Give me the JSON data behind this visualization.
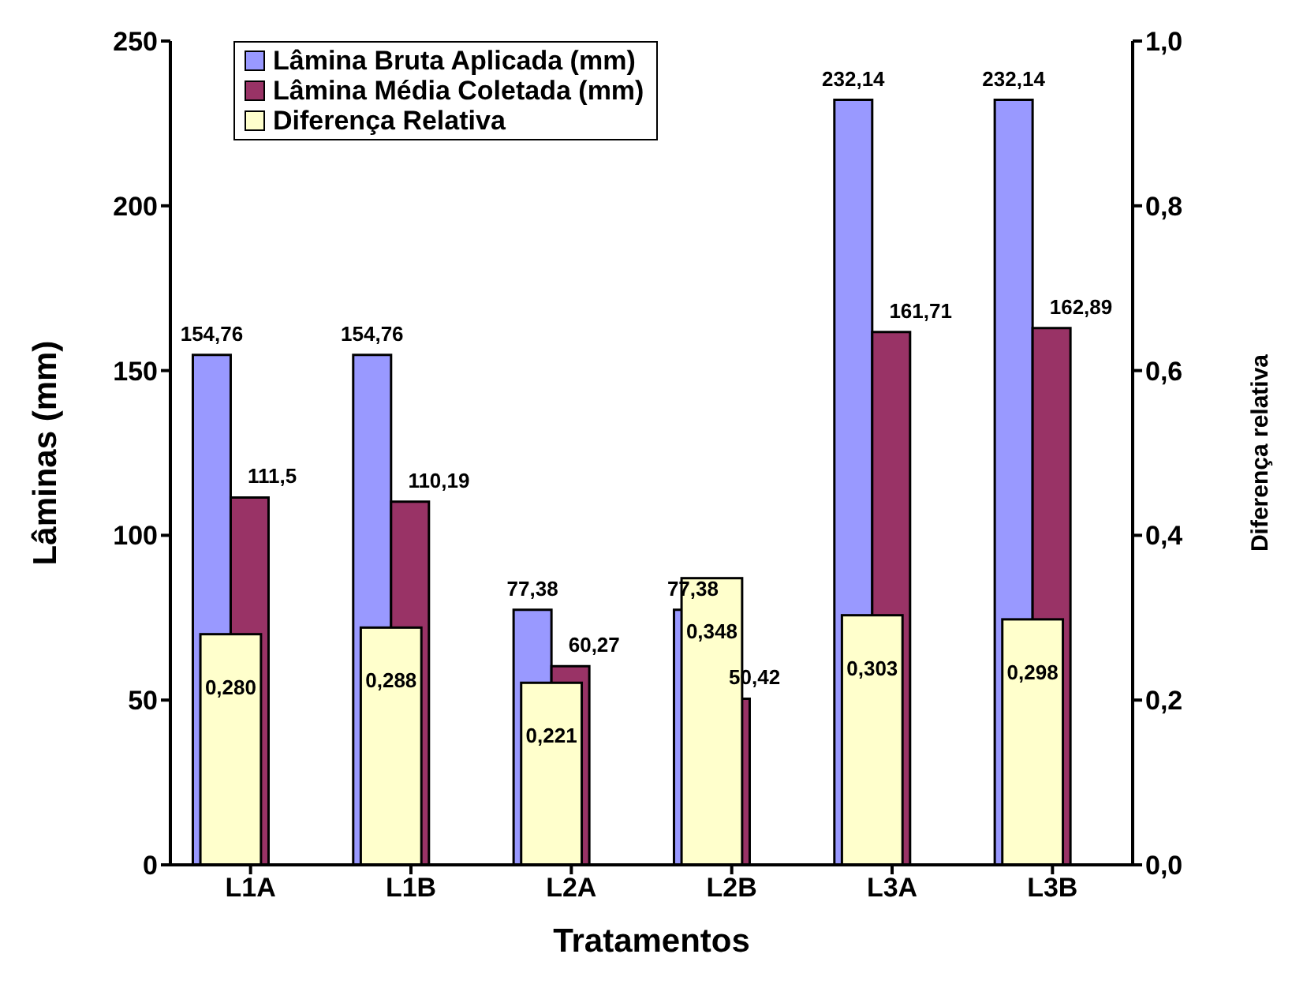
{
  "chart_data": {
    "type": "bar",
    "xlabel": "Tratamentos",
    "ylabel": "Lâminas (mm)",
    "y2label": "Diferença relativa",
    "categories": [
      "L1A",
      "L1B",
      "L2A",
      "L2B",
      "L3A",
      "L3B"
    ],
    "series": [
      {
        "name": "Lâmina Bruta Aplicada (mm)",
        "color": "#9999ff",
        "values": [
          154.76,
          154.76,
          77.38,
          77.38,
          232.14,
          232.14
        ],
        "value_labels": [
          "154,76",
          "154,76",
          "77,38",
          "77,38",
          "232,14",
          "232,14"
        ]
      },
      {
        "name": "Lâmina Média Coletada (mm)",
        "color": "#993366",
        "values": [
          111.5,
          110.19,
          60.27,
          50.42,
          161.71,
          162.89
        ],
        "value_labels": [
          "111,5",
          "110,19",
          "60,27",
          "50,42",
          "161,71",
          "162,89"
        ]
      },
      {
        "name": "Diferença Relativa",
        "color": "#ffffcc",
        "axis": "y2",
        "values": [
          0.28,
          0.288,
          0.221,
          0.348,
          0.303,
          0.298
        ],
        "value_labels": [
          "0,280",
          "0,288",
          "0,221",
          "0,348",
          "0,303",
          "0,298"
        ]
      }
    ],
    "ylim": [
      0,
      250
    ],
    "yticks": [
      0,
      50,
      100,
      150,
      200,
      250
    ],
    "y2lim": [
      0,
      1
    ],
    "y2ticks": [
      {
        "value": 0,
        "label": "0,0"
      },
      {
        "value": 0.2,
        "label": "0,2"
      },
      {
        "value": 0.4,
        "label": "0,4"
      },
      {
        "value": 0.6,
        "label": "0,6"
      },
      {
        "value": 0.8,
        "label": "0,8"
      },
      {
        "value": 1,
        "label": "1,0"
      }
    ],
    "grid": false,
    "legend": "top left"
  }
}
